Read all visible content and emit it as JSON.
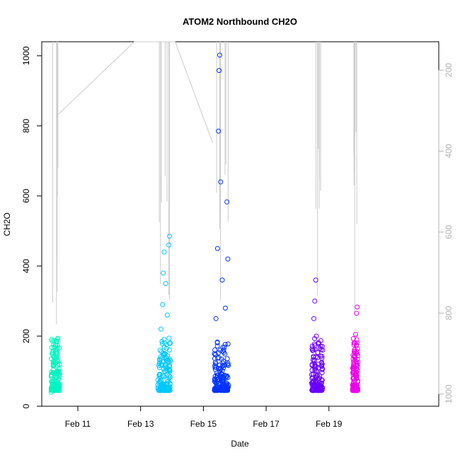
{
  "chart_data": {
    "type": "scatter",
    "title": "ATOM2 Northbound CH2O",
    "xlabel": "Date",
    "ylabel": "CH2O",
    "x_date_origin": "",
    "xlim_days": [
      9.85,
      22.5
    ],
    "ylim": [
      0,
      1040
    ],
    "x_ticks": [
      {
        "day": 11,
        "label": "Feb 11"
      },
      {
        "day": 13,
        "label": "Feb 13"
      },
      {
        "day": 15,
        "label": "Feb 15"
      },
      {
        "day": 17,
        "label": "Feb 17"
      },
      {
        "day": 19,
        "label": "Feb 19"
      }
    ],
    "y_ticks": [
      0,
      200,
      400,
      600,
      800,
      1000
    ],
    "right_axis": {
      "label": "",
      "color": "#b3b3b3",
      "reversed": true,
      "range": [
        1030,
        130
      ],
      "ticks": [
        200,
        400,
        600,
        800,
        1000
      ]
    },
    "grid": false,
    "legend": "none",
    "pressure_line_color": "#cccccc",
    "series": [
      {
        "flight": "Feb 10",
        "color": "#00f5c0",
        "summary_points": [
          {
            "x": 10.15,
            "y": 40
          },
          {
            "x": 10.18,
            "y": 55
          },
          {
            "x": 10.2,
            "y": 70
          },
          {
            "x": 10.22,
            "y": 95
          },
          {
            "x": 10.25,
            "y": 130
          },
          {
            "x": 10.28,
            "y": 160
          },
          {
            "x": 10.3,
            "y": 175
          },
          {
            "x": 10.33,
            "y": 185
          },
          {
            "x": 10.35,
            "y": 150
          },
          {
            "x": 10.38,
            "y": 100
          },
          {
            "x": 10.4,
            "y": 60
          },
          {
            "x": 10.42,
            "y": 45
          }
        ]
      },
      {
        "flight": "Feb 13",
        "color": "#00c8ff",
        "summary_points": [
          {
            "x": 13.55,
            "y": 75
          },
          {
            "x": 13.6,
            "y": 110
          },
          {
            "x": 13.62,
            "y": 160
          },
          {
            "x": 13.65,
            "y": 220
          },
          {
            "x": 13.7,
            "y": 290
          },
          {
            "x": 13.72,
            "y": 380
          },
          {
            "x": 13.75,
            "y": 440
          },
          {
            "x": 13.8,
            "y": 350
          },
          {
            "x": 13.85,
            "y": 260
          },
          {
            "x": 13.9,
            "y": 460
          },
          {
            "x": 13.92,
            "y": 485
          },
          {
            "x": 13.95,
            "y": 130
          }
        ]
      },
      {
        "flight": "Feb 15",
        "color": "#0033ff",
        "summary_points": [
          {
            "x": 15.35,
            "y": 150
          },
          {
            "x": 15.4,
            "y": 250
          },
          {
            "x": 15.45,
            "y": 450
          },
          {
            "x": 15.48,
            "y": 785
          },
          {
            "x": 15.5,
            "y": 958
          },
          {
            "x": 15.52,
            "y": 1002
          },
          {
            "x": 15.55,
            "y": 640
          },
          {
            "x": 15.6,
            "y": 360
          },
          {
            "x": 15.7,
            "y": 280
          },
          {
            "x": 15.75,
            "y": 583
          },
          {
            "x": 15.78,
            "y": 420
          },
          {
            "x": 15.8,
            "y": 60
          }
        ]
      },
      {
        "flight": "Feb 18",
        "color": "#6a00ff",
        "summary_points": [
          {
            "x": 18.45,
            "y": 90
          },
          {
            "x": 18.5,
            "y": 160
          },
          {
            "x": 18.52,
            "y": 250
          },
          {
            "x": 18.55,
            "y": 300
          },
          {
            "x": 18.58,
            "y": 360
          },
          {
            "x": 18.6,
            "y": 200
          },
          {
            "x": 18.65,
            "y": 120
          },
          {
            "x": 18.7,
            "y": 80
          },
          {
            "x": 18.75,
            "y": 60
          },
          {
            "x": 18.8,
            "y": 160
          }
        ]
      },
      {
        "flight": "Feb 19",
        "color": "#ee00ee",
        "summary_points": [
          {
            "x": 19.75,
            "y": 60
          },
          {
            "x": 19.78,
            "y": 80
          },
          {
            "x": 19.8,
            "y": 115
          },
          {
            "x": 19.82,
            "y": 140
          },
          {
            "x": 19.85,
            "y": 205
          },
          {
            "x": 19.88,
            "y": 265
          },
          {
            "x": 19.9,
            "y": 283
          },
          {
            "x": 19.92,
            "y": 70
          }
        ]
      }
    ]
  }
}
